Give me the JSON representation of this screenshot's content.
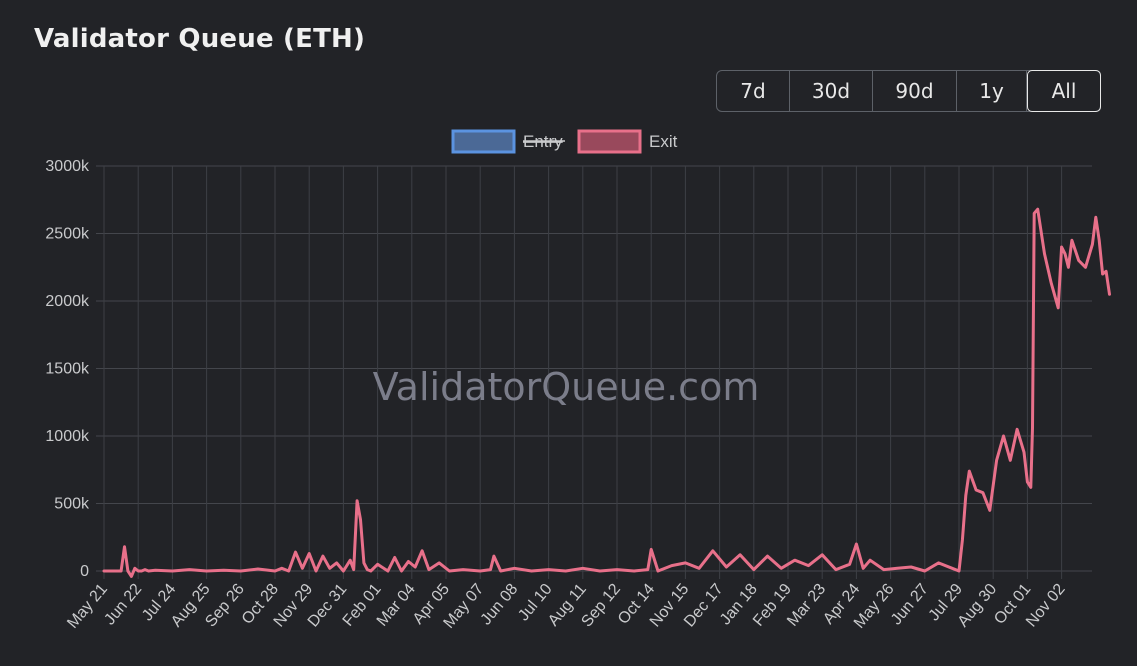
{
  "header": {
    "title": "Validator Queue (ETH)"
  },
  "range_selector": {
    "options": [
      "7d",
      "30d",
      "90d",
      "1y",
      "All"
    ],
    "active": "All"
  },
  "watermark": "ValidatorQueue.com",
  "chart_data": {
    "type": "line",
    "title": "Validator Queue (ETH)",
    "xlabel": "",
    "ylabel": "",
    "ylim": [
      0,
      3000
    ],
    "y_ticks": [
      "0",
      "500k",
      "1000k",
      "1500k",
      "2000k",
      "2500k",
      "3000k"
    ],
    "x_tick_labels": [
      "May 21",
      "Jun 22",
      "Jul 24",
      "Aug 25",
      "Sep 26",
      "Oct 28",
      "Nov 29",
      "Dec 31",
      "Feb 01",
      "Mar 04",
      "Apr 05",
      "May 07",
      "Jun 08",
      "Jul 10",
      "Aug 11",
      "Sep 12",
      "Oct 14",
      "Nov 15",
      "Dec 17",
      "Jan 18",
      "Feb 19",
      "Mar 23",
      "Apr 24",
      "May 26",
      "Jun 27",
      "Jul 29",
      "Aug 30",
      "Oct 01",
      "Nov 02"
    ],
    "x_domain": [
      0,
      29.4
    ],
    "grid": true,
    "legend_position": "top-center",
    "series": [
      {
        "name": "Entry",
        "hidden": true,
        "color": "#5b8fd9",
        "fill": "#4a6a99",
        "x": [],
        "values": []
      },
      {
        "name": "Exit",
        "hidden": false,
        "color": "#e8708a",
        "fill": "#9b4a5d",
        "x": [
          0,
          0.5,
          0.6,
          0.7,
          0.8,
          0.9,
          1.0,
          1.1,
          1.2,
          1.3,
          1.5,
          2.0,
          2.5,
          3.0,
          3.5,
          4.0,
          4.5,
          5.0,
          5.2,
          5.4,
          5.6,
          5.8,
          6.0,
          6.2,
          6.4,
          6.6,
          6.8,
          7.0,
          7.2,
          7.3,
          7.4,
          7.5,
          7.6,
          7.7,
          7.8,
          8.0,
          8.3,
          8.5,
          8.7,
          8.9,
          9.1,
          9.3,
          9.5,
          9.8,
          10.1,
          10.5,
          11.0,
          11.3,
          11.4,
          11.6,
          12.0,
          12.5,
          13.0,
          13.5,
          14.0,
          14.5,
          15.0,
          15.5,
          15.9,
          16.0,
          16.2,
          16.6,
          17.0,
          17.4,
          17.8,
          18.2,
          18.6,
          19.0,
          19.4,
          19.8,
          20.2,
          20.6,
          21.0,
          21.4,
          21.8,
          22.0,
          22.2,
          22.4,
          22.8,
          23.2,
          23.6,
          24.0,
          24.4,
          24.8,
          25.0,
          25.1,
          25.2,
          25.3,
          25.5,
          25.7,
          25.9,
          26.1,
          26.3,
          26.5,
          26.7,
          26.9,
          27.0,
          27.1,
          27.15,
          27.2,
          27.3,
          27.5,
          27.7,
          27.9,
          28.0,
          28.1,
          28.2,
          28.3,
          28.5,
          28.7,
          28.9,
          29.0,
          29.1,
          29.2,
          29.3,
          29.4
        ],
        "values": [
          0,
          0,
          180,
          0,
          -40,
          20,
          0,
          0,
          10,
          0,
          5,
          0,
          10,
          0,
          5,
          0,
          15,
          0,
          20,
          0,
          140,
          20,
          130,
          0,
          110,
          20,
          60,
          0,
          80,
          10,
          520,
          380,
          60,
          10,
          0,
          50,
          0,
          100,
          0,
          70,
          30,
          150,
          10,
          60,
          0,
          10,
          0,
          10,
          110,
          0,
          20,
          0,
          10,
          0,
          20,
          0,
          10,
          0,
          10,
          160,
          0,
          40,
          60,
          20,
          150,
          30,
          120,
          10,
          110,
          20,
          80,
          40,
          120,
          10,
          50,
          200,
          20,
          80,
          10,
          20,
          30,
          0,
          60,
          20,
          0,
          230,
          560,
          740,
          600,
          580,
          450,
          820,
          1000,
          820,
          1050,
          880,
          660,
          620,
          1060,
          2650,
          2680,
          2350,
          2130,
          1950,
          2400,
          2350,
          2250,
          2450,
          2300,
          2250,
          2420,
          2620,
          2450,
          2200,
          2220,
          2050
        ]
      }
    ]
  }
}
